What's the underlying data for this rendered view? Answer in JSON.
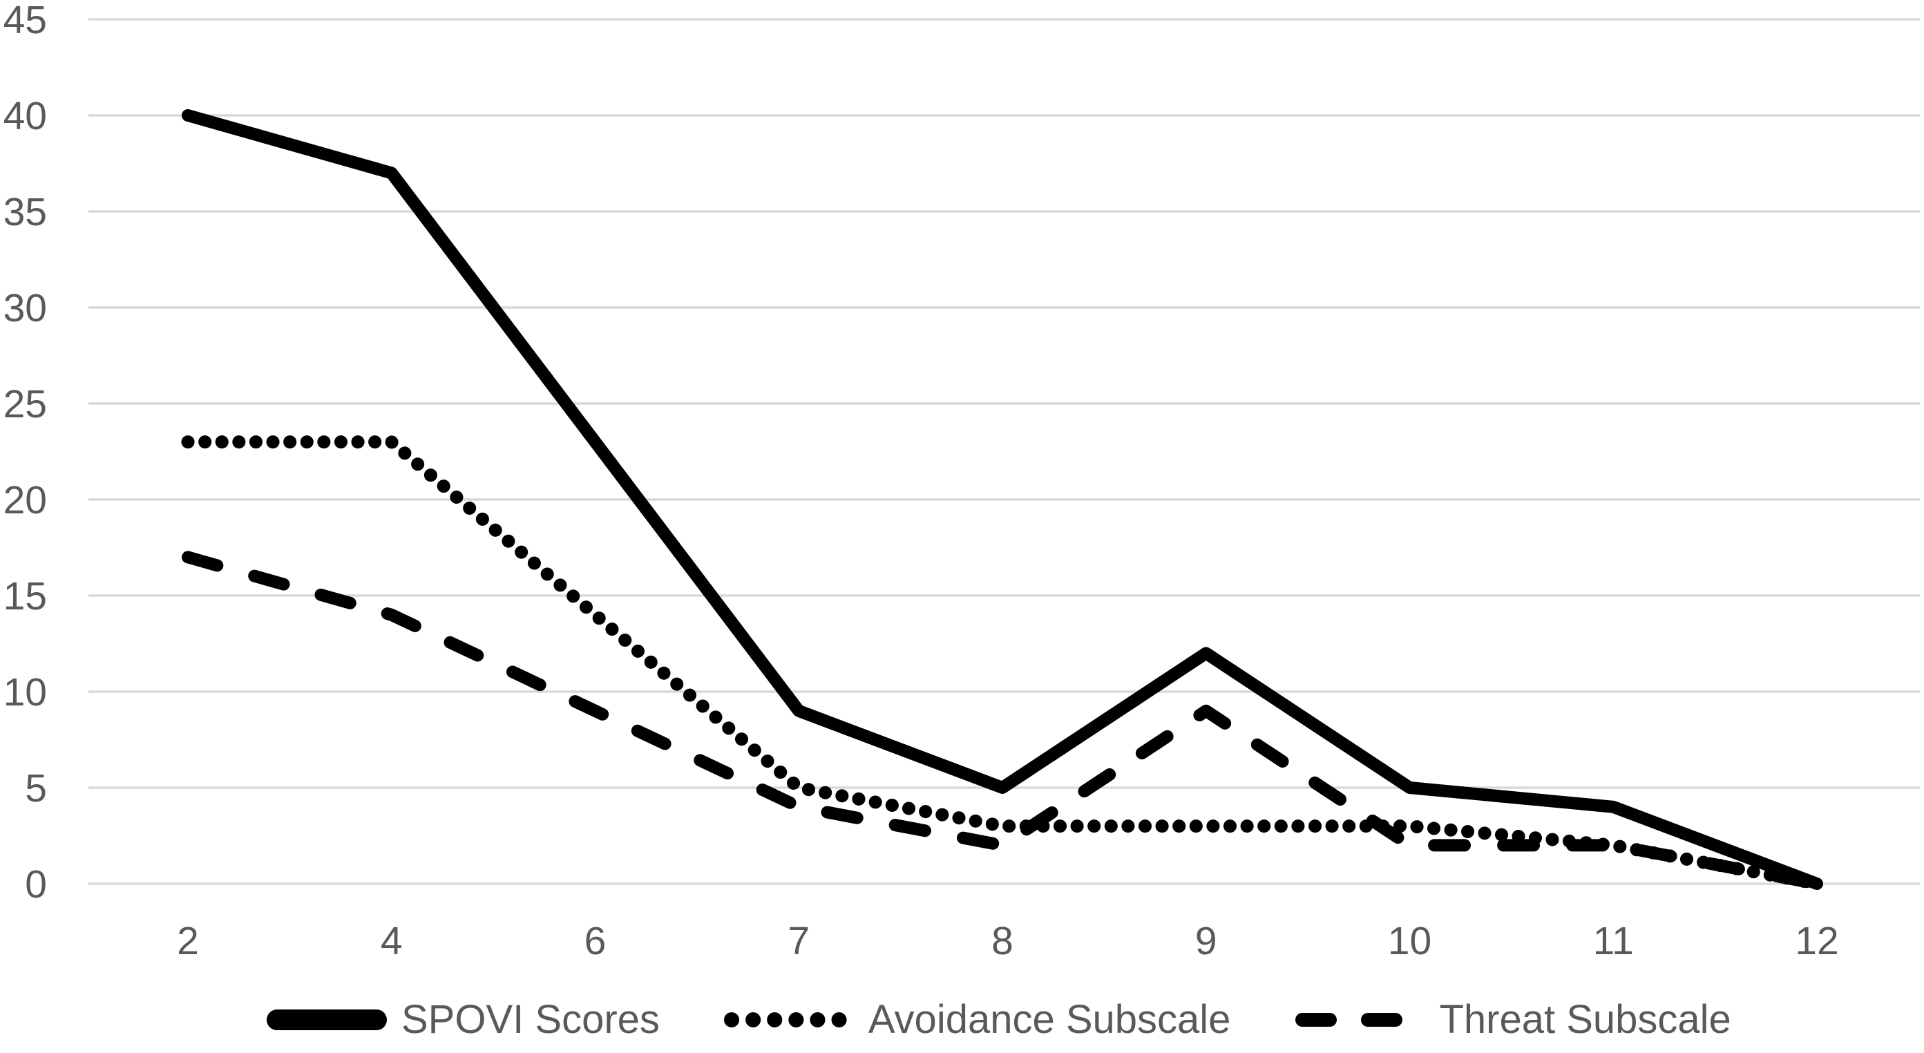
{
  "chart_data": {
    "type": "line",
    "categories": [
      "2",
      "4",
      "6",
      "7",
      "8",
      "9",
      "10",
      "11",
      "12"
    ],
    "series": [
      {
        "name": "SPOVI Scores",
        "style": "solid",
        "values": [
          40,
          37,
          23,
          9,
          5,
          12,
          5,
          4,
          0
        ]
      },
      {
        "name": "Avoidance Subscale",
        "style": "dotted",
        "values": [
          23,
          23,
          14,
          5,
          3,
          3,
          3,
          2,
          0
        ]
      },
      {
        "name": "Threat Subscale",
        "style": "dashed",
        "values": [
          17,
          14,
          9,
          4,
          2,
          9,
          2,
          2,
          0
        ]
      }
    ],
    "y_axis": {
      "min": 0,
      "max": 45,
      "step": 5,
      "ticks": [
        0,
        5,
        10,
        15,
        20,
        25,
        30,
        35,
        40,
        45
      ]
    },
    "grid": true,
    "legend_position": "bottom",
    "colors": {
      "line": "#000000",
      "gridline": "#d9d9d9",
      "axis_text": "#595959",
      "background": "#ffffff"
    }
  }
}
